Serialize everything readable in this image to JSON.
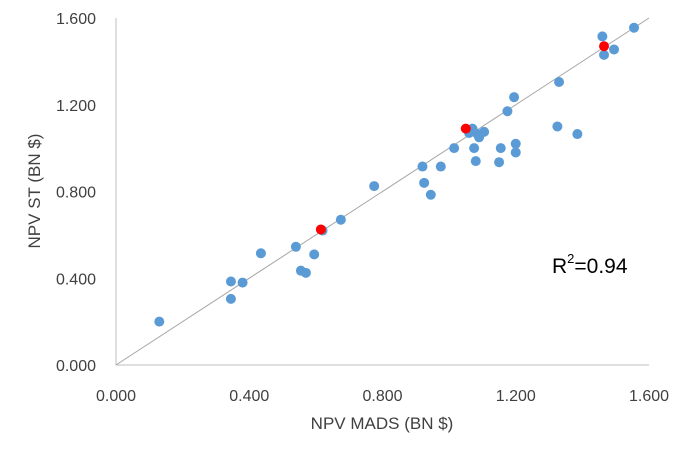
{
  "chart_data": {
    "type": "scatter",
    "title": "",
    "xlabel": "NPV MADS (BN $)",
    "ylabel": "NPV ST (BN $)",
    "xlim": [
      0.0,
      1.6
    ],
    "ylim": [
      0.0,
      1.6
    ],
    "x_ticks": [
      "0.000",
      "0.400",
      "0.800",
      "1.200",
      "1.600"
    ],
    "y_ticks": [
      "0.000",
      "0.400",
      "0.800",
      "1.200",
      "1.600"
    ],
    "grid": false,
    "reference_line": {
      "from": [
        0.0,
        0.0
      ],
      "to": [
        1.6,
        1.6
      ],
      "color": "#a6a6a6"
    },
    "annotation": {
      "base": "R",
      "sup": "2",
      "rest": "=0.94"
    },
    "series": [
      {
        "color": "#5b9bd5",
        "points": [
          [
            0.13,
            0.2
          ],
          [
            0.345,
            0.385
          ],
          [
            0.345,
            0.305
          ],
          [
            0.38,
            0.38
          ],
          [
            0.435,
            0.515
          ],
          [
            0.54,
            0.545
          ],
          [
            0.555,
            0.435
          ],
          [
            0.57,
            0.425
          ],
          [
            0.595,
            0.51
          ],
          [
            0.62,
            0.62
          ],
          [
            0.675,
            0.67
          ],
          [
            0.775,
            0.825
          ],
          [
            0.92,
            0.915
          ],
          [
            0.925,
            0.84
          ],
          [
            0.945,
            0.785
          ],
          [
            0.975,
            0.915
          ],
          [
            1.015,
            1.0
          ],
          [
            1.06,
            1.07
          ],
          [
            1.07,
            1.09
          ],
          [
            1.075,
            1.0
          ],
          [
            1.08,
            0.94
          ],
          [
            1.085,
            1.065
          ],
          [
            1.09,
            1.05
          ],
          [
            1.105,
            1.075
          ],
          [
            1.15,
            0.935
          ],
          [
            1.155,
            1.0
          ],
          [
            1.175,
            1.17
          ],
          [
            1.195,
            1.235
          ],
          [
            1.2,
            0.98
          ],
          [
            1.2,
            1.02
          ],
          [
            1.325,
            1.1
          ],
          [
            1.33,
            1.305
          ],
          [
            1.385,
            1.065
          ],
          [
            1.46,
            1.515
          ],
          [
            1.465,
            1.43
          ],
          [
            1.495,
            1.455
          ],
          [
            1.555,
            1.555
          ]
        ]
      },
      {
        "color": "#ff0000",
        "points": [
          [
            0.615,
            0.625
          ],
          [
            1.05,
            1.09
          ],
          [
            1.465,
            1.47
          ]
        ]
      }
    ]
  }
}
